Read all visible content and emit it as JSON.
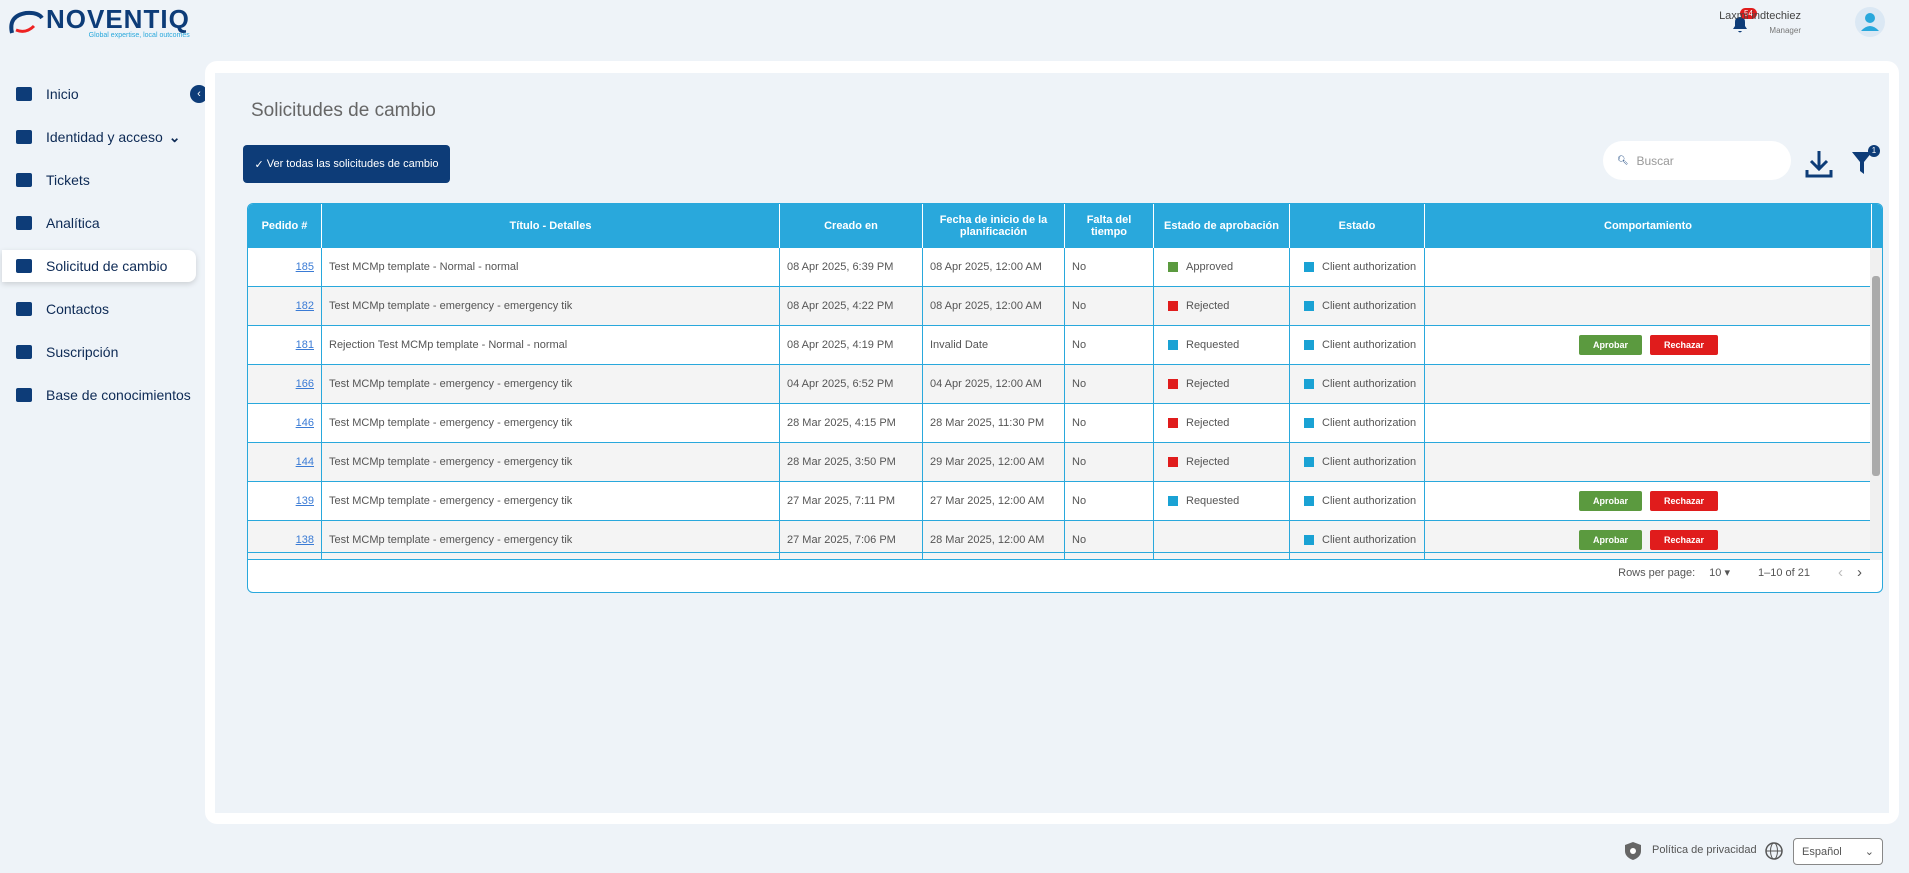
{
  "header": {
    "logo": "NOVENTIQ",
    "tagline": "Global expertise, local outcomes",
    "notifications": "54",
    "user_name": "Laxmi indtechiez",
    "user_role": "Manager"
  },
  "sidebar": {
    "items": [
      {
        "label": "Inicio"
      },
      {
        "label": "Identidad y acceso",
        "submenu": true
      },
      {
        "label": "Tickets"
      },
      {
        "label": "Analítica"
      },
      {
        "label": "Solicitud de cambio",
        "active": true
      },
      {
        "label": "Contactos"
      },
      {
        "label": "Suscripción"
      },
      {
        "label": "Base de conocimientos"
      }
    ]
  },
  "page": {
    "title": "Solicitudes de cambio",
    "view_all_button": "Ver todas las solicitudes de cambio",
    "search_placeholder": "Buscar",
    "filter_count": "1"
  },
  "table": {
    "columns": [
      "Pedido #",
      "Título - Detalles",
      "Creado en",
      "Fecha de inicio de la planificación",
      "Falta del tiempo",
      "Estado de aprobación",
      "Estado",
      "Comportamiento"
    ],
    "rows": [
      {
        "id": "185",
        "title": "Test MCMp template - Normal - normal",
        "created": "08 Apr 2025, 6:39 PM",
        "start": "08 Apr 2025, 12:00 AM",
        "late": "No",
        "approval": "Approved",
        "approval_color": "#5b9a3f",
        "status": "Client authorization",
        "status_color": "#1aa2d4",
        "actions": false
      },
      {
        "id": "182",
        "title": "Test MCMp template - emergency - emergency tik",
        "created": "08 Apr 2025, 4:22 PM",
        "start": "08 Apr 2025, 12:00 AM",
        "late": "No",
        "approval": "Rejected",
        "approval_color": "#e01c1c",
        "status": "Client authorization",
        "status_color": "#1aa2d4",
        "actions": false
      },
      {
        "id": "181",
        "title": "Rejection Test MCMp template - Normal - normal",
        "created": "08 Apr 2025, 4:19 PM",
        "start": "Invalid Date",
        "late": "No",
        "approval": "Requested",
        "approval_color": "#1aa2d4",
        "status": "Client authorization",
        "status_color": "#1aa2d4",
        "actions": true
      },
      {
        "id": "166",
        "title": "Test MCMp template - emergency - emergency tik",
        "created": "04 Apr 2025, 6:52 PM",
        "start": "04 Apr 2025, 12:00 AM",
        "late": "No",
        "approval": "Rejected",
        "approval_color": "#e01c1c",
        "status": "Client authorization",
        "status_color": "#1aa2d4",
        "actions": false
      },
      {
        "id": "146",
        "title": "Test MCMp template - emergency - emergency tik",
        "created": "28 Mar 2025, 4:15 PM",
        "start": "28 Mar 2025, 11:30 PM",
        "late": "No",
        "approval": "Rejected",
        "approval_color": "#e01c1c",
        "status": "Client authorization",
        "status_color": "#1aa2d4",
        "actions": false
      },
      {
        "id": "144",
        "title": "Test MCMp template - emergency - emergency tik",
        "created": "28 Mar 2025, 3:50 PM",
        "start": "29 Mar 2025, 12:00 AM",
        "late": "No",
        "approval": "Rejected",
        "approval_color": "#e01c1c",
        "status": "Client authorization",
        "status_color": "#1aa2d4",
        "actions": false
      },
      {
        "id": "139",
        "title": "Test MCMp template - emergency - emergency tik",
        "created": "27 Mar 2025, 7:11 PM",
        "start": "27 Mar 2025, 12:00 AM",
        "late": "No",
        "approval": "Requested",
        "approval_color": "#1aa2d4",
        "status": "Client authorization",
        "status_color": "#1aa2d4",
        "actions": true
      },
      {
        "id": "138",
        "title": "Test MCMp template - emergency - emergency tik",
        "created": "27 Mar 2025, 7:06 PM",
        "start": "28 Mar 2025, 12:00 AM",
        "late": "No",
        "approval": null,
        "approval_color": null,
        "status": "Client authorization",
        "status_color": "#1aa2d4",
        "actions": true
      }
    ],
    "approve_label": "Aprobar",
    "reject_label": "Rechazar",
    "rows_per_page_label": "Rows per page:",
    "rows_per_page": "10",
    "range": "1–10 of 21"
  },
  "footer": {
    "privacy": "Política de privacidad",
    "language": "Español"
  }
}
